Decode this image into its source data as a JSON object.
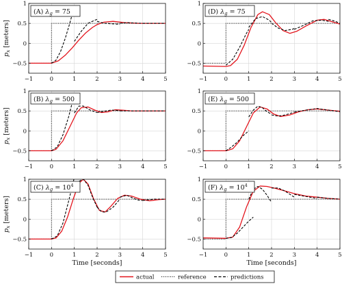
{
  "chart_data": {
    "type": "line",
    "xlabel": "Time [seconds]",
    "ylabel": "p_x [meters]",
    "xlim": [
      -1,
      5
    ],
    "ylim": [
      -0.75,
      1.0
    ],
    "xticks": [
      -1,
      0,
      1,
      2,
      3,
      4,
      5
    ],
    "yticks": [
      -0.5,
      0,
      0.5,
      1
    ],
    "grid": true,
    "legend": {
      "position": "bottom-center",
      "entries": [
        {
          "label": "actual",
          "style": "solid",
          "color": "#e3131b"
        },
        {
          "label": "reference",
          "style": "dotted",
          "color": "#000000"
        },
        {
          "label": "predictions",
          "style": "dashed",
          "color": "#000000"
        }
      ]
    },
    "reference": {
      "x": [
        -1,
        0,
        0,
        5
      ],
      "y": [
        -0.5,
        -0.5,
        0.5,
        0.5
      ]
    },
    "panels": [
      {
        "tag": "(A)",
        "lambda": "75",
        "actual": {
          "x": [
            -1,
            0,
            0.3,
            0.6,
            0.9,
            1.2,
            1.5,
            1.8,
            2.0,
            2.3,
            2.7,
            3.2,
            3.8,
            4.4,
            5
          ],
          "y": [
            -0.5,
            -0.5,
            -0.44,
            -0.3,
            -0.12,
            0.08,
            0.26,
            0.4,
            0.47,
            0.53,
            0.55,
            0.52,
            0.5,
            0.5,
            0.5
          ]
        },
        "predictions": [
          {
            "x": [
              0,
              0.2,
              0.4,
              0.6,
              0.8,
              1.0
            ],
            "y": [
              -0.5,
              -0.42,
              -0.2,
              0.12,
              0.5,
              0.92
            ]
          },
          {
            "x": [
              1.0,
              1.3,
              1.6,
              1.9,
              2.0
            ],
            "y": [
              0.05,
              0.3,
              0.5,
              0.58,
              0.6
            ]
          },
          {
            "x": [
              2.0,
              2.3,
              2.6,
              2.9,
              3.0
            ],
            "y": [
              0.55,
              0.5,
              0.49,
              0.48,
              0.48
            ]
          },
          {
            "x": [
              3.0,
              3.3,
              3.6,
              4.0
            ],
            "y": [
              0.5,
              0.52,
              0.51,
              0.5
            ]
          },
          {
            "x": [
              4.0,
              4.5,
              5.0
            ],
            "y": [
              0.5,
              0.5,
              0.5
            ]
          }
        ]
      },
      {
        "tag": "(D)",
        "lambda": "75",
        "actual": {
          "x": [
            -1,
            0,
            0.2,
            0.5,
            0.8,
            1.1,
            1.4,
            1.6,
            1.9,
            2.2,
            2.5,
            2.8,
            3.1,
            3.5,
            4.0,
            4.3,
            4.6,
            5
          ],
          "y": [
            -0.57,
            -0.58,
            -0.56,
            -0.4,
            -0.05,
            0.4,
            0.72,
            0.79,
            0.72,
            0.5,
            0.32,
            0.25,
            0.3,
            0.43,
            0.58,
            0.6,
            0.55,
            0.48
          ]
        },
        "predictions": [
          {
            "x": [
              0,
              0.3,
              0.6,
              0.9,
              1.0
            ],
            "y": [
              -0.55,
              -0.4,
              -0.1,
              0.25,
              0.35
            ]
          },
          {
            "x": [
              1.0,
              1.3,
              1.6,
              1.9,
              2.0
            ],
            "y": [
              0.4,
              0.62,
              0.67,
              0.58,
              0.52
            ]
          },
          {
            "x": [
              2.0,
              2.3,
              2.6,
              2.9,
              3.0
            ],
            "y": [
              0.5,
              0.38,
              0.32,
              0.35,
              0.37
            ]
          },
          {
            "x": [
              3.0,
              3.4,
              3.8,
              4.2,
              4.5
            ],
            "y": [
              0.35,
              0.45,
              0.56,
              0.58,
              0.55
            ]
          },
          {
            "x": [
              4.5,
              4.8,
              5.0
            ],
            "y": [
              0.6,
              0.55,
              0.5
            ]
          }
        ]
      },
      {
        "tag": "(B)",
        "lambda": "500",
        "actual": {
          "x": [
            -1,
            0,
            0.2,
            0.5,
            0.8,
            1.1,
            1.3,
            1.6,
            1.9,
            2.2,
            2.5,
            2.8,
            3.1,
            3.5,
            4.0,
            4.5,
            5
          ],
          "y": [
            -0.5,
            -0.5,
            -0.46,
            -0.25,
            0.1,
            0.45,
            0.58,
            0.6,
            0.52,
            0.46,
            0.48,
            0.53,
            0.52,
            0.5,
            0.5,
            0.5,
            0.5
          ]
        },
        "predictions": [
          {
            "x": [
              0,
              0.25,
              0.5,
              0.75,
              1.0
            ],
            "y": [
              -0.5,
              -0.4,
              -0.1,
              0.35,
              0.92
            ]
          },
          {
            "x": [
              1.0,
              1.2,
              1.4,
              1.7,
              2.0
            ],
            "y": [
              0.45,
              0.62,
              0.62,
              0.52,
              0.46
            ]
          },
          {
            "x": [
              2.0,
              2.3,
              2.6,
              3.0
            ],
            "y": [
              0.46,
              0.49,
              0.52,
              0.51
            ]
          },
          {
            "x": [
              3.0,
              3.5,
              4.0,
              4.5,
              5.0
            ],
            "y": [
              0.5,
              0.5,
              0.5,
              0.5,
              0.5
            ]
          }
        ]
      },
      {
        "tag": "(E)",
        "lambda": "500",
        "actual": {
          "x": [
            -1,
            0,
            0.3,
            0.6,
            0.9,
            1.2,
            1.5,
            1.8,
            2.1,
            2.4,
            2.8,
            3.2,
            3.6,
            4.0,
            4.5,
            5
          ],
          "y": [
            -0.5,
            -0.5,
            -0.45,
            -0.25,
            0.1,
            0.45,
            0.6,
            0.55,
            0.42,
            0.36,
            0.4,
            0.48,
            0.53,
            0.55,
            0.52,
            0.49
          ]
        },
        "predictions": [
          {
            "x": [
              0,
              0.25,
              0.5,
              0.75,
              1.0
            ],
            "y": [
              -0.5,
              -0.4,
              -0.28,
              -0.12,
              0.0
            ]
          },
          {
            "x": [
              1.0,
              1.2,
              1.4,
              1.6,
              1.8,
              2.0
            ],
            "y": [
              0.35,
              0.52,
              0.62,
              0.58,
              0.48,
              0.42
            ]
          },
          {
            "x": [
              2.0,
              2.3,
              2.6,
              3.0
            ],
            "y": [
              0.4,
              0.37,
              0.4,
              0.47
            ]
          },
          {
            "x": [
              3.0,
              3.5,
              4.0,
              4.5,
              5.0
            ],
            "y": [
              0.47,
              0.52,
              0.56,
              0.52,
              0.48
            ]
          }
        ]
      },
      {
        "tag": "(C)",
        "lambda": "10^4",
        "actual": {
          "x": [
            -1,
            0,
            0.2,
            0.45,
            0.7,
            0.95,
            1.2,
            1.4,
            1.6,
            1.85,
            2.1,
            2.35,
            2.6,
            2.9,
            3.2,
            3.5,
            3.9,
            4.3,
            4.7,
            5
          ],
          "y": [
            -0.5,
            -0.5,
            -0.47,
            -0.3,
            0.05,
            0.5,
            0.9,
            1.0,
            0.88,
            0.5,
            0.22,
            0.18,
            0.32,
            0.52,
            0.6,
            0.58,
            0.5,
            0.46,
            0.49,
            0.5
          ]
        },
        "predictions": [
          {
            "x": [
              0,
              0.25,
              0.5,
              0.75,
              1.0
            ],
            "y": [
              -0.5,
              -0.42,
              -0.1,
              0.45,
              1.05
            ]
          },
          {
            "x": [
              1.0,
              1.2,
              1.4,
              1.6,
              1.8,
              2.0
            ],
            "y": [
              0.7,
              0.95,
              1.0,
              0.85,
              0.55,
              0.3
            ]
          },
          {
            "x": [
              2.0,
              2.2,
              2.4,
              2.7,
              3.0
            ],
            "y": [
              0.3,
              0.18,
              0.18,
              0.3,
              0.5
            ]
          },
          {
            "x": [
              3.0,
              3.3,
              3.6,
              3.8,
              4.0
            ],
            "y": [
              0.55,
              0.6,
              0.52,
              0.48,
              0.47
            ]
          },
          {
            "x": [
              4.0,
              4.5,
              5.0
            ],
            "y": [
              0.47,
              0.5,
              0.5
            ]
          }
        ]
      },
      {
        "tag": "(F)",
        "lambda": "10^4",
        "actual": {
          "x": [
            -1,
            0,
            0.3,
            0.6,
            0.9,
            1.2,
            1.5,
            1.8,
            2.1,
            2.5,
            3.0,
            3.5,
            4.0,
            4.5,
            5
          ],
          "y": [
            -0.47,
            -0.48,
            -0.45,
            -0.2,
            0.3,
            0.7,
            0.83,
            0.82,
            0.78,
            0.72,
            0.64,
            0.58,
            0.55,
            0.52,
            0.5
          ]
        },
        "predictions": [
          {
            "x": [
              0,
              0.25,
              0.5,
              0.75,
              1.0,
              1.2
            ],
            "y": [
              -0.48,
              -0.46,
              -0.35,
              -0.2,
              -0.05,
              0.05
            ]
          },
          {
            "x": [
              1.0,
              1.2,
              1.4,
              1.6,
              1.8,
              2.0
            ],
            "y": [
              0.5,
              0.75,
              0.82,
              0.75,
              0.6,
              0.42
            ]
          },
          {
            "x": [
              2.0,
              2.3,
              2.6,
              3.0
            ],
            "y": [
              0.78,
              0.78,
              0.7,
              0.55
            ]
          },
          {
            "x": [
              3.0,
              3.4,
              3.8,
              4.0
            ],
            "y": [
              0.62,
              0.58,
              0.54,
              0.52
            ]
          },
          {
            "x": [
              4.0,
              4.5,
              5.0
            ],
            "y": [
              0.55,
              0.52,
              0.5
            ]
          }
        ]
      }
    ]
  }
}
